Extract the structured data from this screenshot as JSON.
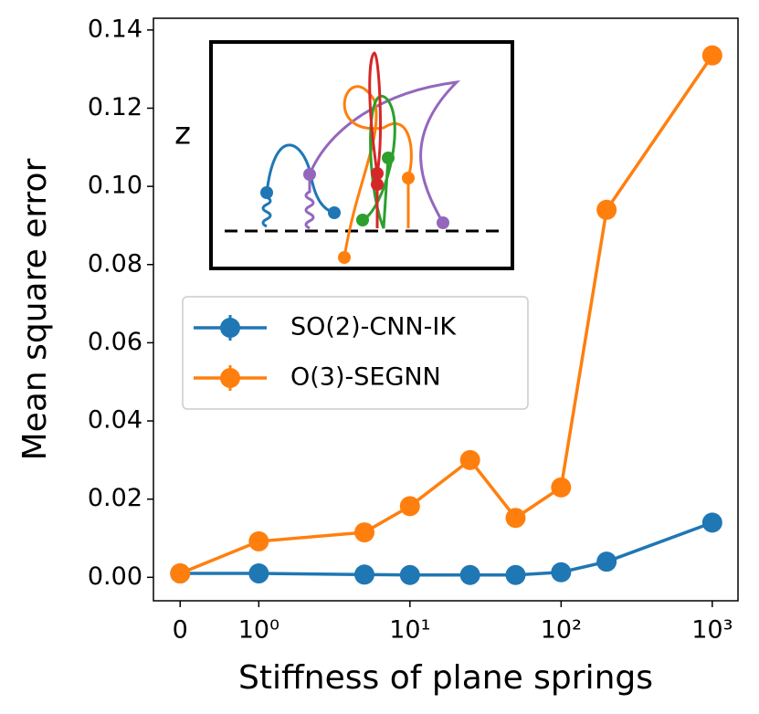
{
  "chart_data": {
    "type": "line",
    "x_label": "Stiffness of plane springs",
    "y_label": "Mean square error",
    "x": [
      0,
      1,
      5,
      10,
      25,
      50,
      100,
      200,
      1000
    ],
    "xscale": "symlog",
    "series": [
      {
        "name": "SO(2)-CNN-IK",
        "color": "#1f77b4",
        "values": [
          0.001,
          0.001,
          0.0007,
          0.0006,
          0.0006,
          0.0006,
          0.0013,
          0.004,
          0.014
        ]
      },
      {
        "name": "O(3)-SEGNN",
        "color": "#ff7f0e",
        "values": [
          0.001,
          0.0092,
          0.0115,
          0.0182,
          0.03,
          0.0152,
          0.023,
          0.094,
          0.1335
        ]
      }
    ],
    "xlim": [
      -0.34,
      1480
    ],
    "xticks": [
      0,
      {
        "value": 1,
        "label": "10⁰"
      },
      {
        "value": 10,
        "label": "10¹"
      },
      {
        "value": 100,
        "label": "10²"
      },
      {
        "value": 1000,
        "label": "10³"
      }
    ],
    "ylim": [
      -0.006,
      0.143
    ],
    "yticks": [
      {
        "value": 0,
        "label": "0.00"
      },
      {
        "value": 0.02,
        "label": "0.02"
      },
      {
        "value": 0.04,
        "label": "0.04"
      },
      {
        "value": 0.06,
        "label": "0.06"
      },
      {
        "value": 0.08,
        "label": "0.08"
      },
      {
        "value": 0.1,
        "label": "0.10"
      },
      {
        "value": 0.12,
        "label": "0.12"
      },
      {
        "value": 0.14,
        "label": "0.14"
      }
    ],
    "inset_label": "z",
    "legend": "center-left"
  }
}
